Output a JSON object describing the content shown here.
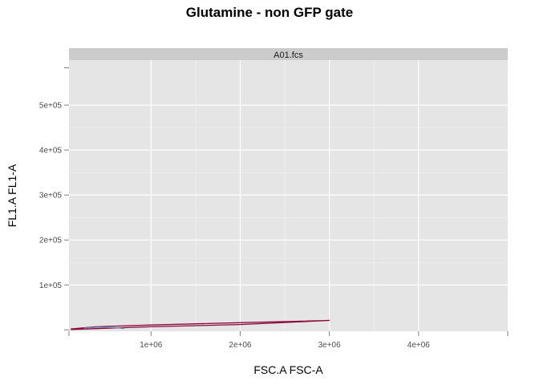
{
  "chart_data": {
    "type": "line",
    "title": "Glutamine - non GFP gate",
    "panel_label": "A01.fcs",
    "xlabel": "FSC.A FSC-A",
    "ylabel": "FL1.A FL1-A",
    "xlim": [
      80000,
      5000000
    ],
    "ylim": [
      -3000,
      600000
    ],
    "x_ticks": [
      1000000,
      2000000,
      3000000,
      4000000
    ],
    "x_tick_labels": [
      "1e+06",
      "2e+06",
      "3e+06",
      "4e+06"
    ],
    "y_ticks": [
      100000,
      200000,
      300000,
      400000,
      500000
    ],
    "y_tick_labels": [
      "1e+05",
      "2e+05",
      "3e+05",
      "4e+05",
      "5e+05"
    ],
    "grid": true,
    "series": [
      {
        "color": "#8b0a3a",
        "x": [
          100000,
          380000,
          1000000,
          2000000,
          3000000,
          2000000,
          1000000,
          700000,
          100000
        ],
        "y": [
          2000,
          7000,
          11000,
          16000,
          21000,
          12000,
          7000,
          5000,
          1000
        ]
      },
      {
        "color": "#6e8fb8",
        "x": [
          250000,
          400000,
          600000,
          700000
        ],
        "y": [
          4000,
          6000,
          5000,
          3000
        ]
      }
    ]
  }
}
